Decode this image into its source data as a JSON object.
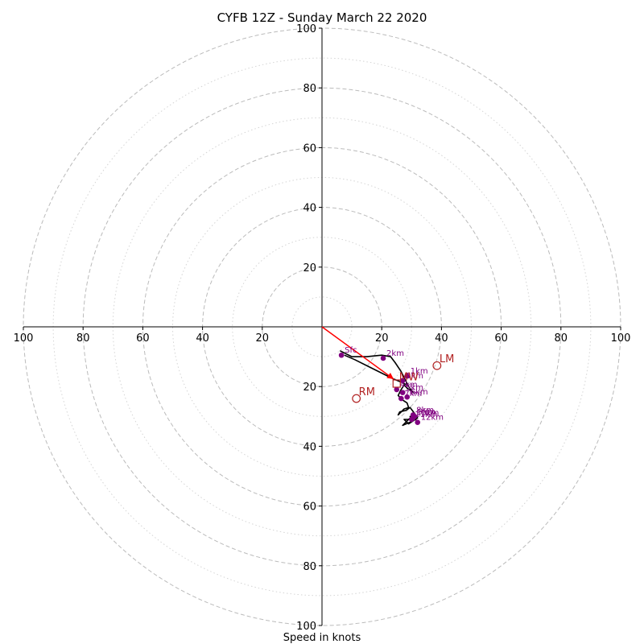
{
  "chart_data": {
    "type": "scatter",
    "title": "CYFB 12Z - Sunday March 22 2020",
    "xlabel": "Speed in knots",
    "ylabel": "",
    "xlim": [
      -100,
      100
    ],
    "ylim": [
      -100,
      100
    ],
    "ring_major_values": [
      20,
      40,
      60,
      80,
      100
    ],
    "ring_minor_values": [
      10,
      30,
      50,
      70,
      90
    ],
    "tick_values": [
      20,
      40,
      60,
      80,
      100
    ],
    "tick_labels": [
      "20",
      "40",
      "60",
      "80",
      "100"
    ],
    "grid": true,
    "hodograph_trace": {
      "u": [
        6.0,
        10.0,
        15.0,
        20.0,
        23.0,
        24.5,
        26.5,
        28.0,
        29.0,
        30.5,
        28.5,
        27.5,
        26.5,
        25.5,
        27.0,
        28.5,
        29.0,
        27.5,
        25.5,
        26.0,
        28.0,
        29.5,
        31.0,
        32.0,
        29.0,
        27.5,
        31.0,
        30.0,
        27.0,
        30.5,
        29.5,
        32.0
      ],
      "v": [
        -8.0,
        -10.0,
        -10.0,
        -9.5,
        -10.0,
        -12.0,
        -15.0,
        -18.0,
        -20.0,
        -22.0,
        -20.5,
        -19.5,
        -21.0,
        -23.0,
        -24.5,
        -25.5,
        -27.0,
        -27.5,
        -29.5,
        -28.5,
        -28.0,
        -27.0,
        -29.0,
        -30.5,
        -32.5,
        -31.0,
        -31.0,
        -30.0,
        -33.0,
        -31.5,
        -30.0,
        -31.5
      ]
    },
    "secondary_trace": {
      "u": [
        7.5,
        11.0,
        16.0,
        20.0,
        24.0,
        26.5,
        28.5
      ],
      "v": [
        -9.5,
        -11.0,
        -13.5,
        -15.5,
        -17.5,
        -18.5,
        -19.5
      ]
    },
    "points": [
      {
        "label": "Sfc",
        "u": 6.5,
        "v": -9.5
      },
      {
        "label": "2km",
        "u": 20.5,
        "v": -10.5
      },
      {
        "label": "1km",
        "u": 28.5,
        "v": -16.5
      },
      {
        "label": "3km",
        "u": 27.0,
        "v": -18.0
      },
      {
        "label": "4km",
        "u": 25.0,
        "v": -21.0
      },
      {
        "label": "5km",
        "u": 27.0,
        "v": -22.0
      },
      {
        "label": "6km",
        "u": 28.5,
        "v": -23.5
      },
      {
        "label": "7km",
        "u": 26.5,
        "v": -24.0
      },
      {
        "label": "8km",
        "u": 30.5,
        "v": -29.5
      },
      {
        "label": "9km",
        "u": 31.0,
        "v": -30.0
      },
      {
        "label": "10km",
        "u": 30.5,
        "v": -30.5
      },
      {
        "label": "11km",
        "u": 30.0,
        "v": -31.0
      },
      {
        "label": "12km",
        "u": 32.0,
        "v": -32.0
      }
    ],
    "storm_motions": [
      {
        "label": "LM",
        "u": 38.5,
        "v": -13.0
      },
      {
        "label": "RM",
        "u": 11.5,
        "v": -24.0
      },
      {
        "label": "MW",
        "u": 25.0,
        "v": -19.0
      }
    ],
    "storm_motion_vector": {
      "from_u": 0.0,
      "from_v": 0.0,
      "to_u": 24.0,
      "to_v": -17.5
    },
    "colors": {
      "trace": "#000000",
      "height_points": "#800080",
      "storm_motion": "#b22222",
      "motion_vector": "#ff0000",
      "grid": "#bbbbbb"
    }
  }
}
